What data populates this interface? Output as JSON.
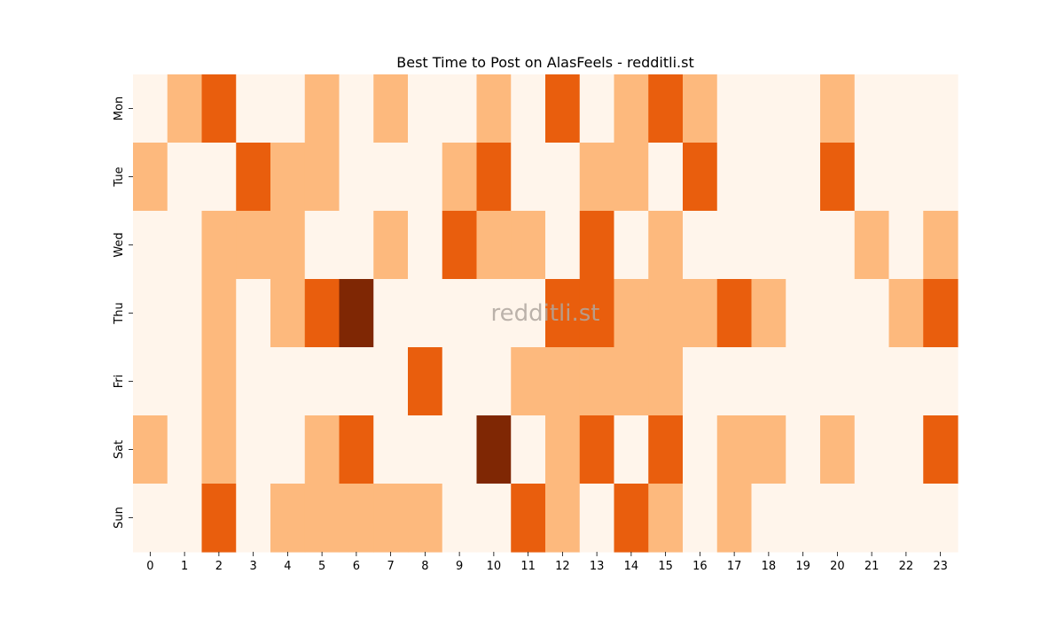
{
  "chart_data": {
    "type": "heatmap",
    "title": "Best Time to Post on AlasFeels - redditli.st",
    "watermark": "redditli.st",
    "x_categories": [
      "0",
      "1",
      "2",
      "3",
      "4",
      "5",
      "6",
      "7",
      "8",
      "9",
      "10",
      "11",
      "12",
      "13",
      "14",
      "15",
      "16",
      "17",
      "18",
      "19",
      "20",
      "21",
      "22",
      "23"
    ],
    "y_categories": [
      "Mon",
      "Tue",
      "Wed",
      "Thu",
      "Fri",
      "Sat",
      "Sun"
    ],
    "values": [
      [
        0,
        1,
        2,
        0,
        0,
        1,
        0,
        1,
        0,
        0,
        1,
        0,
        2,
        0,
        1,
        2,
        1,
        0,
        0,
        0,
        1,
        0,
        0,
        0
      ],
      [
        1,
        0,
        0,
        2,
        1,
        1,
        0,
        0,
        0,
        1,
        2,
        0,
        0,
        1,
        1,
        0,
        2,
        0,
        0,
        0,
        2,
        0,
        0,
        0
      ],
      [
        0,
        0,
        1,
        1,
        1,
        0,
        0,
        1,
        0,
        2,
        1,
        1,
        0,
        2,
        0,
        1,
        0,
        0,
        0,
        0,
        0,
        1,
        0,
        1
      ],
      [
        0,
        0,
        1,
        0,
        1,
        2,
        3,
        0,
        0,
        0,
        0,
        0,
        2,
        2,
        1,
        1,
        1,
        2,
        1,
        0,
        0,
        0,
        1,
        2
      ],
      [
        0,
        0,
        1,
        0,
        0,
        0,
        0,
        0,
        2,
        0,
        0,
        1,
        1,
        1,
        1,
        1,
        0,
        0,
        0,
        0,
        0,
        0,
        0,
        0
      ],
      [
        1,
        0,
        1,
        0,
        0,
        1,
        2,
        0,
        0,
        0,
        3,
        0,
        1,
        2,
        0,
        2,
        0,
        1,
        1,
        0,
        1,
        0,
        0,
        2
      ],
      [
        0,
        0,
        2,
        0,
        1,
        1,
        1,
        1,
        1,
        0,
        0,
        2,
        1,
        0,
        2,
        1,
        0,
        1,
        0,
        0,
        0,
        0,
        0,
        0
      ]
    ],
    "colors": [
      "#fff5eb",
      "#fdb97d",
      "#e95e0d",
      "#7f2704"
    ],
    "colorbar": false
  }
}
